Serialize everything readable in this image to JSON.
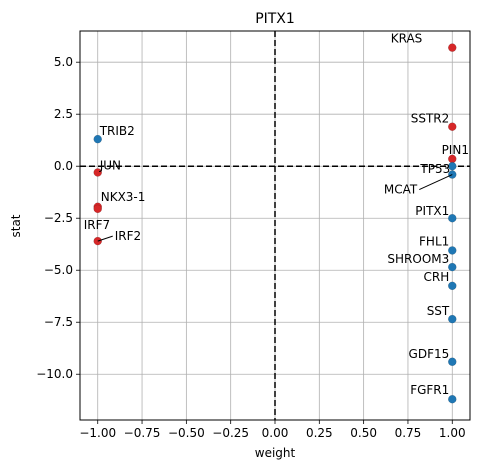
{
  "chart_data": {
    "type": "scatter",
    "title": "PITX1",
    "xlabel": "weight",
    "ylabel": "stat",
    "xlim": [
      -1.1,
      1.1
    ],
    "ylim": [
      -12.2,
      6.5
    ],
    "grid": true,
    "xticks": [
      -1.0,
      -0.75,
      -0.5,
      -0.25,
      0.0,
      0.25,
      0.5,
      0.75,
      1.0
    ],
    "xtick_labels": [
      "−1.00",
      "−0.75",
      "−0.50",
      "−0.25",
      "0.00",
      "0.25",
      "0.50",
      "0.75",
      "1.00"
    ],
    "yticks": [
      5.0,
      2.5,
      0.0,
      -2.5,
      -5.0,
      -7.5,
      -10.0
    ],
    "ytick_labels": [
      "5.0",
      "2.5",
      "0.0",
      "−2.5",
      "−5.0",
      "−7.5",
      "−10.0"
    ],
    "reference_lines": {
      "x": 0.0,
      "y": 0.0,
      "style": "dashed"
    },
    "colors": {
      "positive": "#d62728",
      "negative": "#1f77b4"
    },
    "points": [
      {
        "label": "KRAS",
        "x": 1.0,
        "y": 5.7,
        "color": "#d62728"
      },
      {
        "label": "SSTR2",
        "x": 1.0,
        "y": 1.9,
        "color": "#d62728"
      },
      {
        "label": "PIN1",
        "x": 1.0,
        "y": 0.35,
        "color": "#d62728"
      },
      {
        "label": "TP53",
        "x": 1.0,
        "y": 0.0,
        "color": "#1f77b4"
      },
      {
        "label": "MCAT",
        "x": 1.0,
        "y": -0.4,
        "color": "#1f77b4"
      },
      {
        "label": "PITX1",
        "x": 1.0,
        "y": -2.5,
        "color": "#1f77b4"
      },
      {
        "label": "FHL1",
        "x": 1.0,
        "y": -4.05,
        "color": "#1f77b4"
      },
      {
        "label": "SHROOM3",
        "x": 1.0,
        "y": -4.85,
        "color": "#1f77b4"
      },
      {
        "label": "CRH",
        "x": 1.0,
        "y": -5.75,
        "color": "#1f77b4"
      },
      {
        "label": "SST",
        "x": 1.0,
        "y": -7.35,
        "color": "#1f77b4"
      },
      {
        "label": "GDF15",
        "x": 1.0,
        "y": -9.4,
        "color": "#1f77b4"
      },
      {
        "label": "FGFR1",
        "x": 1.0,
        "y": -11.2,
        "color": "#1f77b4"
      },
      {
        "label": "TRIB2",
        "x": -1.0,
        "y": 1.3,
        "color": "#1f77b4"
      },
      {
        "label": "JUN",
        "x": -1.0,
        "y": -0.3,
        "color": "#d62728"
      },
      {
        "label": "NKX3-1",
        "x": -1.0,
        "y": -1.95,
        "color": "#d62728"
      },
      {
        "label": "IRF7",
        "x": -1.0,
        "y": -2.05,
        "color": "#d62728"
      },
      {
        "label": "IRF2",
        "x": -1.0,
        "y": -3.6,
        "color": "#d62728"
      }
    ]
  }
}
